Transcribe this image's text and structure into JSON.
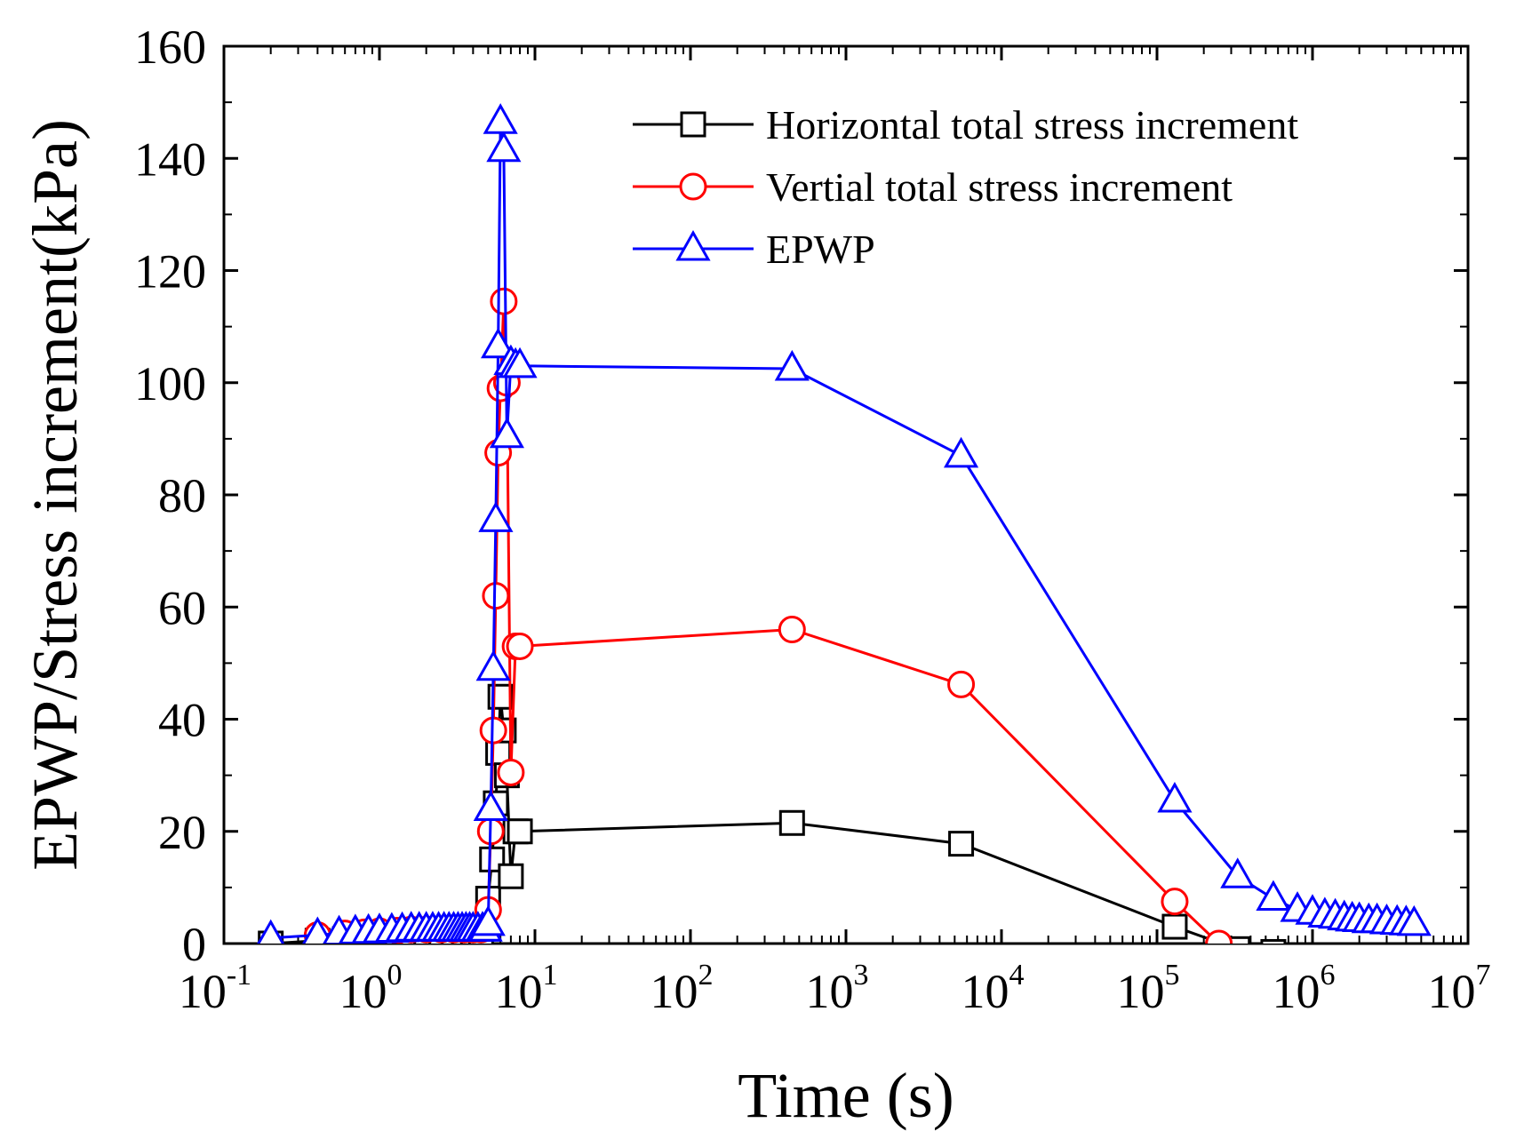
{
  "chart_data": {
    "type": "line",
    "title": "",
    "xlabel": "Time (s)",
    "ylabel": "EPWP/Stress increment(kPa)",
    "xscale": "log",
    "xlim": [
      0.1,
      10000000
    ],
    "ylim": [
      0,
      160
    ],
    "x_ticks": [
      {
        "base": "10",
        "exp": "-1",
        "value": 0.1
      },
      {
        "base": "10",
        "exp": "0",
        "value": 1
      },
      {
        "base": "10",
        "exp": "1",
        "value": 10
      },
      {
        "base": "10",
        "exp": "2",
        "value": 100
      },
      {
        "base": "10",
        "exp": "3",
        "value": 1000
      },
      {
        "base": "10",
        "exp": "4",
        "value": 10000
      },
      {
        "base": "10",
        "exp": "5",
        "value": 100000
      },
      {
        "base": "10",
        "exp": "6",
        "value": 1000000
      },
      {
        "base": "10",
        "exp": "7",
        "value": 10000000
      }
    ],
    "y_ticks": [
      "0",
      "20",
      "40",
      "60",
      "80",
      "100",
      "120",
      "140",
      "160"
    ],
    "legend_position": "top-right",
    "grid": false,
    "series": [
      {
        "name": "Horizontal total stress increment",
        "color": "#000000",
        "marker": "square",
        "x": [
          0.2,
          0.4,
          0.6,
          0.8,
          1.0,
          1.3,
          1.6,
          2.0,
          2.5,
          3.0,
          3.5,
          4.0,
          4.5,
          5.0,
          5.3,
          5.6,
          5.8,
          6.0,
          6.3,
          6.6,
          7.0,
          7.5,
          8.0,
          450,
          5500,
          130000,
          330000,
          560000
        ],
        "y": [
          0,
          0.5,
          0.8,
          1.0,
          1.2,
          1.3,
          1.4,
          1.5,
          1.5,
          1.5,
          1.5,
          1.5,
          1.5,
          8,
          15,
          25,
          34,
          44,
          38,
          30,
          12,
          20,
          20,
          21.5,
          17.8,
          3,
          -1,
          -1.5
        ]
      },
      {
        "name": "Vertial total stress increment",
        "color": "#ff0000",
        "marker": "circle",
        "x": [
          0.4,
          0.6,
          0.8,
          1.0,
          1.3,
          1.6,
          2.0,
          2.5,
          3.0,
          3.5,
          4.0,
          4.5,
          5.0,
          5.2,
          5.4,
          5.6,
          5.8,
          6.0,
          6.3,
          6.6,
          7.0,
          7.5,
          8.0,
          450,
          5500,
          130000,
          250000
        ],
        "y": [
          1.5,
          1.8,
          2,
          2.2,
          2.3,
          2.5,
          2.5,
          2.5,
          2.5,
          2.5,
          2.5,
          2.5,
          6,
          20,
          38,
          62,
          87.5,
          99,
          114.5,
          100,
          30.5,
          53,
          53,
          56,
          46.2,
          7.5,
          0
        ]
      },
      {
        "name": "EPWP",
        "color": "#0000ff",
        "marker": "triangle",
        "x": [
          0.2,
          0.4,
          0.55,
          0.7,
          0.85,
          1.0,
          1.2,
          1.4,
          1.6,
          1.8,
          2.0,
          2.2,
          2.4,
          2.6,
          2.8,
          3.0,
          3.2,
          3.4,
          3.6,
          3.8,
          4.0,
          4.3,
          4.6,
          4.8,
          5.0,
          5.2,
          5.4,
          5.6,
          5.8,
          6.0,
          6.3,
          6.6,
          7.0,
          7.5,
          8.0,
          450,
          5500,
          130000,
          330000,
          560000,
          800000,
          1000000,
          1200000,
          1400000,
          1600000,
          1800000,
          2000000,
          2300000,
          2600000,
          3000000,
          3500000,
          4000000,
          4500000
        ],
        "y": [
          1,
          1.5,
          1.8,
          2,
          2.1,
          2.2,
          2.3,
          2.4,
          2.5,
          2.5,
          2.5,
          2.5,
          2.5,
          2.5,
          2.5,
          2.5,
          2.5,
          2.5,
          2.5,
          2.5,
          2.5,
          2.5,
          2.5,
          2.5,
          3.5,
          24,
          49,
          75.5,
          106.5,
          146.5,
          141.5,
          90.5,
          103.5,
          103,
          103,
          102.5,
          87,
          25.5,
          12,
          8,
          6,
          5.5,
          5,
          4.8,
          4.5,
          4.3,
          4.2,
          4,
          4,
          3.8,
          3.7,
          3.6,
          3.5
        ]
      }
    ]
  }
}
